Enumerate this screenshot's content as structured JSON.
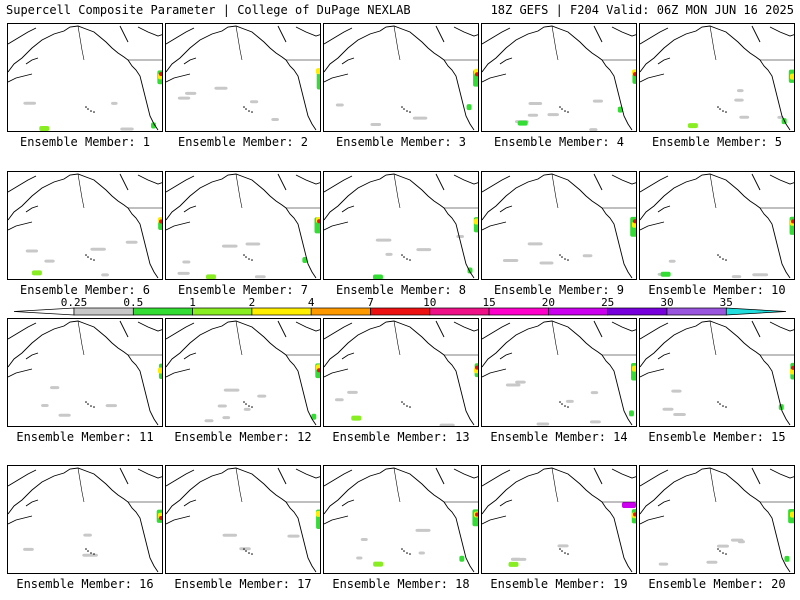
{
  "header": {
    "left": "Supercell Composite Parameter | College of DuPage NEXLAB",
    "right": "18Z GEFS | F204 Valid: 06Z MON JUN 16 2025"
  },
  "colorbar": {
    "ticks": [
      "0.25",
      "0.5",
      "1",
      "2",
      "4",
      "7",
      "10",
      "15",
      "20",
      "25",
      "30",
      "35"
    ],
    "colors": [
      "#ffffff",
      "#c8c8c8",
      "#33dd33",
      "#88ee22",
      "#ffee00",
      "#ff9900",
      "#ee1111",
      "#ee1188",
      "#ff00cc",
      "#cc00ee",
      "#7700dd",
      "#9955dd",
      "#22dddd"
    ]
  },
  "members": [
    {
      "label": "Ensemble Member: 1"
    },
    {
      "label": "Ensemble Member: 2"
    },
    {
      "label": "Ensemble Member: 3"
    },
    {
      "label": "Ensemble Member: 4"
    },
    {
      "label": "Ensemble Member: 5"
    },
    {
      "label": "Ensemble Member: 6"
    },
    {
      "label": "Ensemble Member: 7"
    },
    {
      "label": "Ensemble Member: 8"
    },
    {
      "label": "Ensemble Member: 9"
    },
    {
      "label": "Ensemble Member: 10"
    },
    {
      "label": "Ensemble Member: 11"
    },
    {
      "label": "Ensemble Member: 12"
    },
    {
      "label": "Ensemble Member: 13"
    },
    {
      "label": "Ensemble Member: 14"
    },
    {
      "label": "Ensemble Member: 15"
    },
    {
      "label": "Ensemble Member: 16"
    },
    {
      "label": "Ensemble Member: 17"
    },
    {
      "label": "Ensemble Member: 18"
    },
    {
      "label": "Ensemble Member: 19"
    },
    {
      "label": "Ensemble Member: 20"
    }
  ]
}
